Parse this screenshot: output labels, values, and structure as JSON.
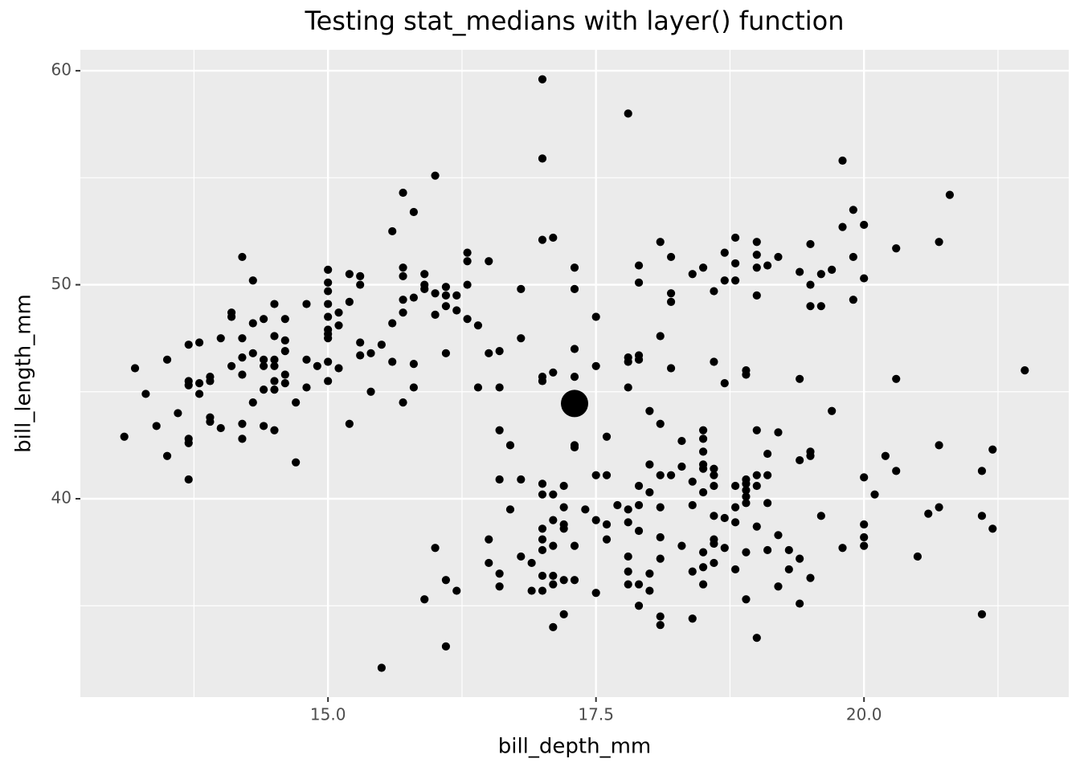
{
  "chart_data": {
    "type": "scatter",
    "title": "Testing stat_medians with layer() function",
    "x_label": "bill_depth_mm",
    "y_label": "bill_length_mm",
    "xlim": [
      12.69,
      21.91
    ],
    "ylim": [
      30.73,
      60.98
    ],
    "xticks": [
      {
        "value": 15,
        "label": "15.0"
      },
      17.5,
      {
        "value": 20,
        "label": "20.0"
      }
    ],
    "yticks": [
      40,
      50,
      60
    ],
    "x_minor_grid": [
      13.75,
      16.25,
      18.75,
      21.25
    ],
    "y_minor_grid": [
      35,
      45,
      55
    ],
    "grid": true,
    "series": [
      {
        "color": "#000000",
        "size": 1.5,
        "x": [
          13.1,
          13.2,
          13.3,
          13.4,
          13.5,
          13.5,
          13.6,
          13.7,
          13.7,
          13.7,
          13.7,
          13.7,
          13.7,
          13.8,
          13.8,
          13.8,
          13.9,
          13.9,
          13.9,
          13.9,
          14.0,
          14.0,
          14.1,
          14.1,
          14.1,
          14.2,
          14.2,
          14.2,
          14.2,
          14.2,
          14.2,
          14.3,
          14.3,
          14.3,
          14.3,
          14.4,
          14.4,
          14.4,
          14.4,
          14.4,
          14.5,
          14.5,
          14.5,
          14.5,
          14.5,
          14.5,
          14.5,
          14.6,
          14.6,
          14.6,
          14.6,
          14.6,
          14.7,
          14.7,
          14.8,
          14.8,
          14.8,
          14.9,
          15.0,
          15.0,
          15.0,
          15.0,
          15.0,
          15.0,
          15.0,
          15.0,
          15.0,
          15.0,
          15.1,
          15.1,
          15.1,
          15.2,
          15.2,
          15.2,
          15.3,
          15.3,
          15.3,
          15.3,
          15.4,
          15.4,
          15.5,
          15.5,
          15.6,
          15.6,
          15.6,
          15.7,
          15.7,
          15.7,
          15.7,
          15.7,
          15.7,
          15.8,
          15.8,
          15.8,
          15.8,
          15.9,
          15.9,
          15.9,
          15.9,
          16.0,
          16.0,
          16.0,
          16.0,
          16.1,
          16.1,
          16.1,
          16.1,
          16.1,
          16.1,
          16.2,
          16.2,
          16.2,
          16.3,
          16.3,
          16.3,
          16.3,
          16.4,
          16.4,
          16.5,
          16.5,
          16.5,
          16.5,
          16.6,
          16.6,
          16.6,
          16.6,
          16.6,
          16.6,
          16.7,
          16.7,
          16.8,
          16.8,
          16.8,
          16.8,
          16.9,
          16.9,
          17.0,
          17.0,
          17.0,
          17.0,
          17.0,
          17.0,
          17.0,
          17.0,
          17.0,
          17.0,
          17.0,
          17.0,
          17.1,
          17.1,
          17.1,
          17.1,
          17.1,
          17.1,
          17.1,
          17.1,
          17.2,
          17.2,
          17.2,
          17.2,
          17.2,
          17.2,
          17.3,
          17.3,
          17.3,
          17.3,
          17.3,
          17.3,
          17.3,
          17.3,
          17.4,
          17.5,
          17.5,
          17.5,
          17.5,
          17.5,
          17.6,
          17.6,
          17.6,
          17.6,
          17.7,
          17.8,
          17.8,
          17.8,
          17.8,
          17.8,
          17.8,
          17.8,
          17.8,
          17.8,
          17.9,
          17.9,
          17.9,
          17.9,
          17.9,
          17.9,
          17.9,
          17.9,
          17.9,
          18.0,
          18.0,
          18.0,
          18.0,
          18.0,
          18.1,
          18.1,
          18.1,
          18.1,
          18.1,
          18.1,
          18.1,
          18.1,
          18.1,
          18.2,
          18.2,
          18.2,
          18.2,
          18.2,
          18.3,
          18.3,
          18.3,
          18.4,
          18.4,
          18.4,
          18.4,
          18.4,
          18.5,
          18.5,
          18.5,
          18.5,
          18.5,
          18.5,
          18.5,
          18.5,
          18.5,
          18.5,
          18.6,
          18.6,
          18.6,
          18.6,
          18.6,
          18.6,
          18.6,
          18.6,
          18.6,
          18.7,
          18.7,
          18.7,
          18.7,
          18.7,
          18.8,
          18.8,
          18.8,
          18.8,
          18.8,
          18.8,
          18.8,
          18.9,
          18.9,
          18.9,
          18.9,
          18.9,
          18.9,
          18.9,
          18.9,
          18.9,
          19.0,
          19.0,
          19.0,
          19.0,
          19.0,
          19.0,
          19.0,
          19.0,
          19.0,
          19.1,
          19.1,
          19.1,
          19.1,
          19.1,
          19.2,
          19.2,
          19.2,
          19.2,
          19.3,
          19.3,
          19.4,
          19.4,
          19.4,
          19.4,
          19.4,
          19.5,
          19.5,
          19.5,
          19.5,
          19.5,
          19.5,
          19.6,
          19.6,
          19.6,
          19.7,
          19.7,
          19.8,
          19.8,
          19.8,
          19.9,
          19.9,
          19.9,
          20.0,
          20.0,
          20.0,
          20.0,
          20.0,
          20.0,
          20.1,
          20.2,
          20.3,
          20.3,
          20.3,
          20.5,
          20.6,
          20.7,
          20.7,
          20.7,
          20.8,
          21.1,
          21.1,
          21.1,
          21.2,
          21.2,
          21.5
        ],
        "y": [
          42.9,
          46.1,
          44.9,
          43.4,
          46.5,
          42.0,
          44.0,
          47.2,
          45.5,
          45.3,
          42.8,
          42.6,
          40.9,
          47.3,
          45.4,
          44.9,
          45.7,
          45.5,
          43.8,
          43.6,
          43.3,
          47.5,
          48.7,
          48.5,
          46.2,
          51.3,
          47.5,
          46.6,
          45.8,
          43.5,
          42.8,
          50.2,
          48.2,
          46.8,
          44.5,
          48.4,
          46.5,
          46.2,
          45.1,
          43.4,
          49.1,
          47.6,
          46.5,
          46.2,
          45.5,
          45.1,
          43.2,
          48.4,
          47.4,
          46.9,
          45.8,
          45.4,
          44.5,
          41.7,
          49.1,
          46.5,
          45.2,
          46.2,
          50.7,
          50.1,
          49.7,
          49.1,
          48.5,
          47.9,
          47.7,
          47.5,
          46.4,
          45.5,
          48.7,
          48.1,
          46.1,
          50.5,
          49.2,
          43.5,
          50.4,
          50.0,
          47.3,
          46.7,
          46.8,
          45.0,
          47.2,
          32.1,
          52.5,
          48.2,
          46.4,
          54.3,
          50.8,
          50.4,
          49.3,
          48.7,
          44.5,
          53.4,
          49.4,
          46.3,
          45.2,
          50.5,
          50.0,
          49.8,
          35.3,
          55.1,
          49.6,
          48.6,
          37.7,
          49.9,
          49.5,
          49.0,
          46.8,
          36.2,
          33.1,
          49.5,
          48.8,
          35.7,
          51.5,
          51.1,
          50.0,
          48.4,
          48.1,
          45.2,
          51.1,
          46.8,
          38.1,
          37.0,
          46.9,
          45.2,
          43.2,
          40.9,
          36.5,
          35.9,
          42.5,
          39.5,
          49.8,
          47.5,
          40.9,
          37.3,
          37.0,
          35.7,
          59.6,
          55.9,
          52.1,
          45.7,
          45.5,
          40.7,
          40.2,
          38.6,
          38.1,
          37.6,
          36.4,
          35.7,
          52.2,
          45.9,
          40.2,
          39.0,
          37.8,
          36.4,
          36.0,
          34.0,
          40.6,
          39.6,
          38.8,
          38.6,
          36.2,
          34.6,
          50.8,
          49.8,
          47.0,
          45.7,
          42.5,
          42.4,
          37.8,
          36.2,
          39.5,
          48.5,
          46.2,
          41.1,
          39.0,
          35.6,
          42.9,
          41.1,
          38.8,
          38.1,
          39.7,
          58.0,
          46.6,
          46.4,
          45.2,
          39.5,
          38.9,
          37.3,
          36.6,
          36.0,
          50.9,
          50.1,
          46.7,
          46.5,
          40.6,
          39.7,
          38.5,
          36.0,
          35.0,
          44.1,
          41.6,
          40.3,
          36.5,
          35.7,
          52.0,
          47.6,
          43.5,
          41.1,
          39.6,
          38.2,
          37.2,
          34.5,
          34.1,
          51.3,
          49.6,
          49.2,
          46.1,
          41.1,
          42.7,
          41.5,
          37.8,
          50.5,
          40.8,
          39.7,
          36.6,
          34.4,
          50.8,
          43.2,
          42.8,
          42.2,
          41.6,
          41.4,
          40.3,
          37.5,
          36.8,
          36.0,
          49.7,
          46.4,
          41.4,
          41.1,
          40.6,
          39.2,
          38.1,
          37.9,
          37.0,
          51.5,
          50.2,
          45.4,
          39.1,
          37.7,
          52.2,
          51.0,
          50.2,
          40.6,
          39.6,
          38.9,
          36.7,
          46.0,
          45.8,
          40.9,
          40.7,
          40.4,
          40.1,
          39.8,
          37.5,
          35.3,
          52.0,
          51.4,
          50.8,
          49.5,
          43.2,
          41.1,
          40.6,
          38.7,
          33.5,
          50.9,
          42.1,
          41.1,
          39.8,
          37.6,
          51.3,
          43.1,
          38.3,
          35.9,
          37.6,
          36.7,
          50.6,
          45.6,
          41.8,
          37.2,
          35.1,
          51.9,
          50.0,
          49.0,
          42.2,
          42.0,
          36.3,
          50.5,
          49.0,
          39.2,
          50.7,
          44.1,
          55.8,
          52.7,
          37.7,
          53.5,
          51.3,
          49.3,
          52.8,
          50.3,
          41.0,
          38.8,
          38.2,
          37.8,
          40.2,
          42.0,
          51.7,
          45.6,
          41.3,
          37.3,
          39.3,
          52.0,
          42.5,
          39.6,
          54.2,
          41.3,
          39.2,
          34.6,
          42.3,
          38.6,
          46.0
        ]
      },
      {
        "color": "#000000",
        "size": 5,
        "x": [
          17.3
        ],
        "y": [
          44.45
        ]
      }
    ]
  }
}
